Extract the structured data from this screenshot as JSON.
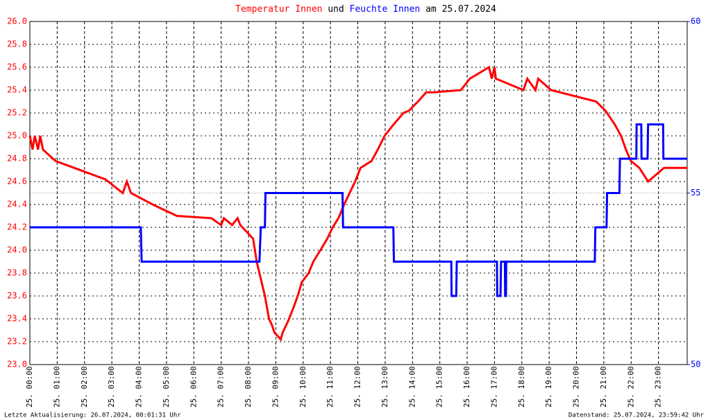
{
  "chart_data": {
    "type": "line",
    "title_joiner": "und",
    "title_date": "am 25.07.2024",
    "footer_left": "Letzte Aktualisierung: 26.07.2024, 00:01:31 Uhr",
    "footer_right": "Datenstand: 25.07.2024, 23:59:42 Uhr",
    "xlim": [
      0,
      24.05
    ],
    "xticks": [
      {
        "value": 0,
        "label": "25. 00:00"
      },
      {
        "value": 1,
        "label": "25. 01:00"
      },
      {
        "value": 2,
        "label": "25. 02:00"
      },
      {
        "value": 3,
        "label": "25. 03:00"
      },
      {
        "value": 4,
        "label": "25. 04:00"
      },
      {
        "value": 5,
        "label": "25. 05:00"
      },
      {
        "value": 6,
        "label": "25. 06:00"
      },
      {
        "value": 7,
        "label": "25. 07:00"
      },
      {
        "value": 8,
        "label": "25. 08:00"
      },
      {
        "value": 9,
        "label": "25. 09:00"
      },
      {
        "value": 10,
        "label": "25. 10:00"
      },
      {
        "value": 11,
        "label": "25. 11:00"
      },
      {
        "value": 12,
        "label": "25. 12:00"
      },
      {
        "value": 13,
        "label": "25. 13:00"
      },
      {
        "value": 14,
        "label": "25. 14:00"
      },
      {
        "value": 15,
        "label": "25. 15:00"
      },
      {
        "value": 16,
        "label": "25. 16:00"
      },
      {
        "value": 17,
        "label": "25. 17:00"
      },
      {
        "value": 18,
        "label": "25. 18:00"
      },
      {
        "value": 19,
        "label": "25. 19:00"
      },
      {
        "value": 20,
        "label": "25. 20:00"
      },
      {
        "value": 21,
        "label": "25. 21:00"
      },
      {
        "value": 22,
        "label": "25. 22:00"
      },
      {
        "value": 23,
        "label": "25. 23:00"
      }
    ],
    "ylim": [
      23.0,
      26.0
    ],
    "yticks": [
      {
        "value": 23.0,
        "label": "23.0"
      },
      23.2,
      23.4,
      23.6,
      23.8,
      {
        "value": 24.0,
        "label": "24.0"
      },
      24.2,
      24.4,
      24.6,
      24.8,
      {
        "value": 25.0,
        "label": "25.0"
      },
      25.2,
      25.4,
      25.6,
      25.8,
      {
        "value": 26.0,
        "label": "26.0"
      }
    ],
    "y2lim": [
      50,
      60
    ],
    "y2ticks": [
      50,
      55,
      60
    ],
    "grid": true,
    "series": [
      {
        "name": "Temperatur Innen",
        "color": "#ff0000",
        "x": [
          0,
          0.1,
          0.18,
          0.3,
          0.38,
          0.48,
          0.94,
          1.62,
          2.76,
          3.4,
          3.55,
          3.7,
          4.49,
          5.38,
          6.64,
          7.0,
          7.1,
          7.4,
          7.6,
          7.7,
          8.17,
          8.3,
          8.4,
          8.6,
          8.75,
          8.85,
          8.95,
          9.18,
          9.25,
          9.45,
          9.65,
          9.8,
          9.95,
          10.2,
          10.37,
          10.63,
          10.88,
          11.08,
          11.29,
          11.5,
          11.7,
          11.9,
          12.1,
          12.5,
          12.73,
          12.98,
          13.31,
          13.67,
          13.87,
          14.2,
          14.5,
          14.76,
          15.77,
          16.1,
          16.8,
          16.9,
          17.0,
          17.05,
          18.06,
          18.2,
          18.5,
          18.6,
          19.07,
          20.72,
          21.06,
          21.4,
          21.63,
          21.81,
          21.99,
          22.3,
          22.62,
          23.2,
          24.05
        ],
        "values": [
          25.0,
          24.88,
          25.0,
          24.88,
          25.0,
          24.88,
          24.78,
          24.72,
          24.62,
          24.5,
          24.6,
          24.5,
          24.4,
          24.3,
          24.28,
          24.22,
          24.28,
          24.22,
          24.28,
          24.22,
          24.1,
          23.9,
          23.8,
          23.6,
          23.4,
          23.35,
          23.28,
          23.22,
          23.28,
          23.38,
          23.5,
          23.6,
          23.72,
          23.8,
          23.9,
          24.0,
          24.1,
          24.2,
          24.28,
          24.4,
          24.5,
          24.6,
          24.72,
          24.78,
          24.88,
          25.0,
          25.1,
          25.2,
          25.22,
          25.3,
          25.38,
          25.38,
          25.4,
          25.5,
          25.6,
          25.5,
          25.6,
          25.5,
          25.4,
          25.5,
          25.4,
          25.5,
          25.4,
          25.3,
          25.22,
          25.1,
          25.0,
          24.88,
          24.78,
          24.72,
          24.6,
          24.72,
          24.72
        ]
      },
      {
        "name": "Feuchte Innen",
        "color": "#0000ff",
        "axis": "y2",
        "x": [
          0,
          4.06,
          4.09,
          8.4,
          8.45,
          8.6,
          8.62,
          11.44,
          11.46,
          13.3,
          13.32,
          15.42,
          15.43,
          15.6,
          15.62,
          17.09,
          17.1,
          17.22,
          17.24,
          17.38,
          17.39,
          17.42,
          17.43,
          20.67,
          20.69,
          21.1,
          21.12,
          21.57,
          21.59,
          22.19,
          22.2,
          22.37,
          22.38,
          22.6,
          22.62,
          23.17,
          23.18,
          24.05
        ],
        "values": [
          54,
          54,
          53,
          53,
          54,
          54,
          55,
          55,
          54,
          54,
          53,
          53,
          52,
          52,
          53,
          53,
          52,
          52,
          53,
          53,
          52,
          52,
          53,
          53,
          54,
          54,
          55,
          55,
          56,
          56,
          57,
          57,
          56,
          56,
          57,
          57,
          56,
          56
        ]
      }
    ]
  }
}
